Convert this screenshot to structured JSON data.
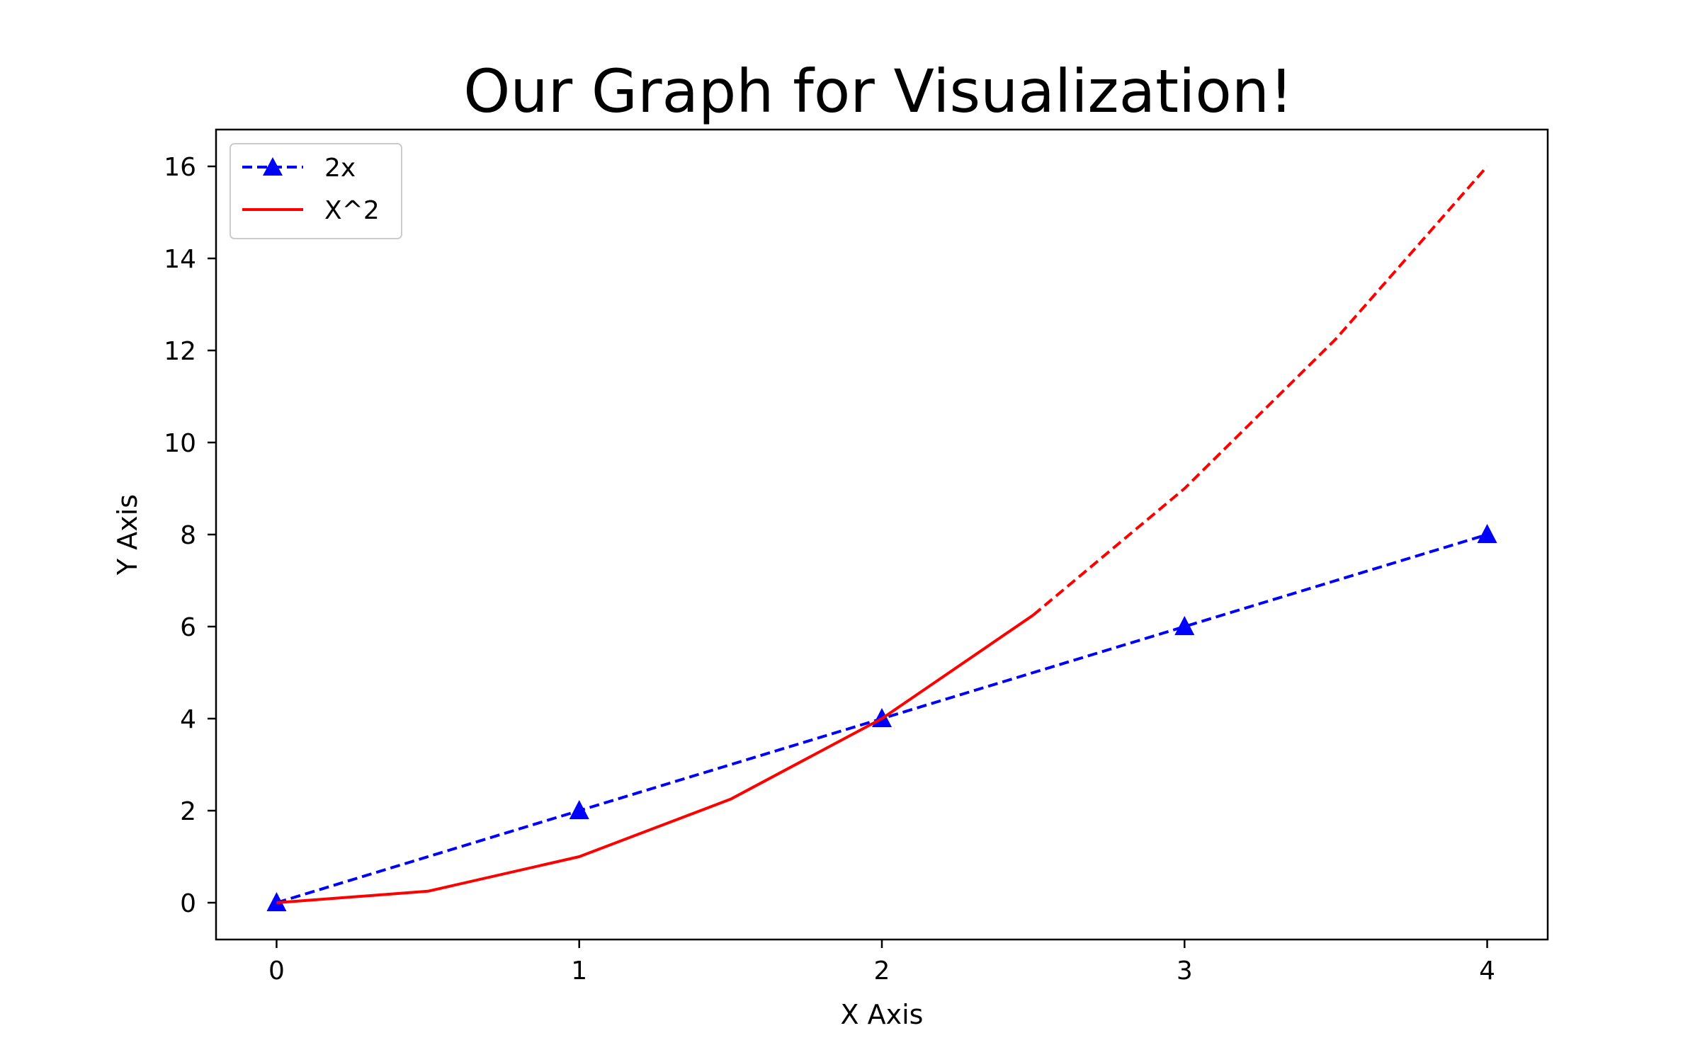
{
  "chart_data": {
    "type": "line",
    "title": "Our Graph for Visualization!",
    "xlabel": "X Axis",
    "ylabel": "Y Axis",
    "xlim": [
      -0.2,
      4.2
    ],
    "ylim": [
      -0.8,
      16.8
    ],
    "x_ticks": [
      0,
      1,
      2,
      3,
      4
    ],
    "y_ticks": [
      0,
      2,
      4,
      6,
      8,
      10,
      12,
      14,
      16
    ],
    "grid": false,
    "legend_position": "upper-left",
    "series": [
      {
        "name": "2x",
        "color": "#0000ff",
        "line_style": "dashed",
        "marker": "triangle",
        "x": [
          0,
          1,
          2,
          3,
          4
        ],
        "y": [
          0,
          2,
          4,
          6,
          8
        ]
      },
      {
        "name": "X^2",
        "color": "#ff0000",
        "line_style": "solid",
        "marker": "none",
        "x": [
          0,
          0.5,
          1,
          1.5,
          2,
          2.5
        ],
        "y": [
          0,
          0.25,
          1,
          2.25,
          4,
          6.25
        ]
      },
      {
        "color": "#ff0000",
        "line_style": "dashed",
        "marker": "none",
        "x": [
          2.5,
          3,
          3.5,
          4
        ],
        "y": [
          6.25,
          9,
          12.25,
          16
        ]
      }
    ]
  }
}
